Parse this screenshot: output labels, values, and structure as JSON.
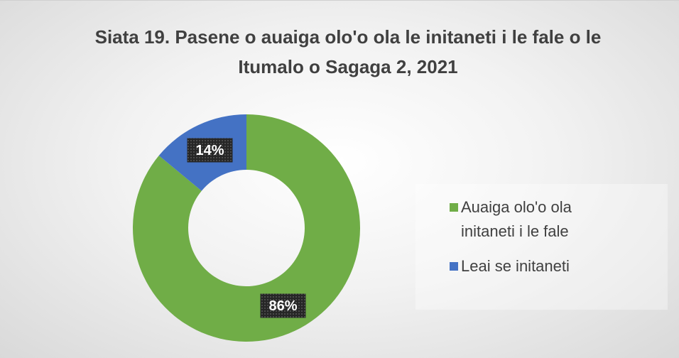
{
  "chart_data": {
    "type": "donut",
    "title": "Siata 19. Pasene o auaiga olo'o ola le initaneti i le fale o le Itumalo o Sagaga 2, 2021",
    "categories": [
      "Auaiga olo'o ola initaneti i le fale",
      "Leai se initaneti"
    ],
    "values": [
      86,
      14
    ],
    "value_labels": [
      "86%",
      "14%"
    ],
    "colors": [
      "#70ad47",
      "#4472c4"
    ],
    "legend": "right"
  }
}
